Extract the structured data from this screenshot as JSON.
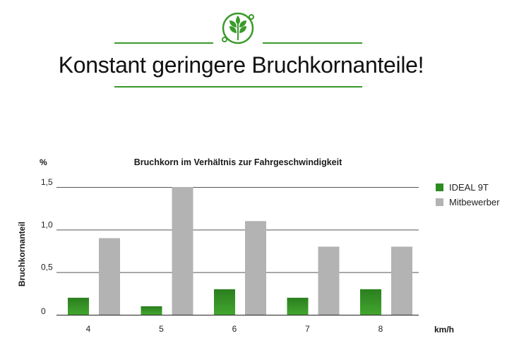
{
  "header": {
    "headline": "Konstant geringere Bruchkornanteile!",
    "logo_icon": "wheat-leaf-icon",
    "accent_color": "#3a9a2a"
  },
  "chart_data": {
    "type": "bar",
    "title": "Bruchkorn im Verhältnis zur Fahrgeschwindigkeit",
    "xlabel": "km/h",
    "ylabel": "Bruchkornanteil",
    "yunit": "%",
    "categories": [
      "4",
      "5",
      "6",
      "7",
      "8"
    ],
    "ylim": [
      0,
      1.5
    ],
    "yticks": [
      {
        "value": 0,
        "label": "0"
      },
      {
        "value": 0.5,
        "label": "0,5"
      },
      {
        "value": 1.0,
        "label": "1,0"
      },
      {
        "value": 1.5,
        "label": "1,5"
      }
    ],
    "gridlines": true,
    "legend_position": "right",
    "series": [
      {
        "name": "IDEAL 9T",
        "values": [
          0.2,
          0.1,
          0.3,
          0.2,
          0.3
        ],
        "color": "#2e8b22"
      },
      {
        "name": "Mitbewerber",
        "values": [
          0.9,
          1.5,
          1.1,
          0.8,
          0.8
        ],
        "color": "#b3b3b3"
      }
    ]
  }
}
